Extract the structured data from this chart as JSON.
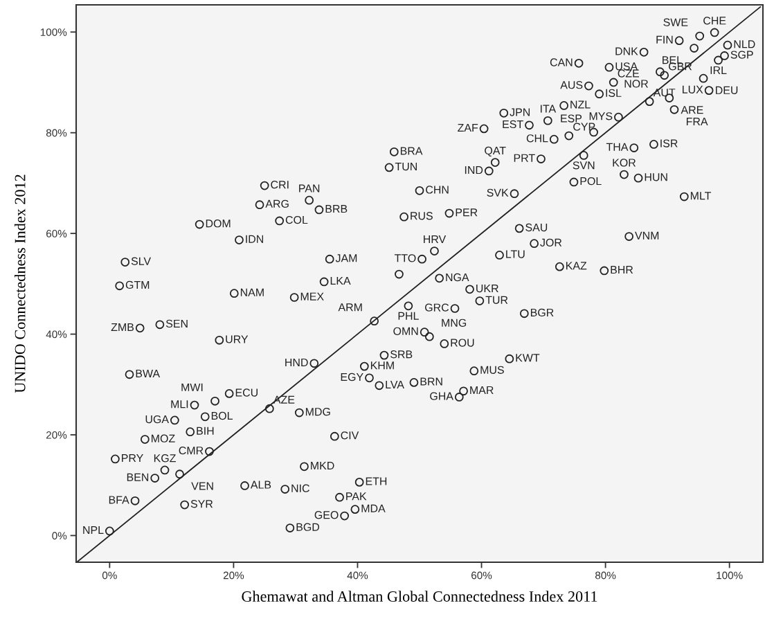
{
  "chart_data": {
    "type": "scatter",
    "xlabel": "Ghemawat and Altman Global Connectedness Index 2011",
    "ylabel": "UNIDO Connectedness Index 2012",
    "xlim": [
      -5.4,
      105.4
    ],
    "ylim": [
      -5.3,
      105.4
    ],
    "xticks": [
      {
        "value": 0,
        "label": "0%"
      },
      {
        "value": 20,
        "label": "20%"
      },
      {
        "value": 40,
        "label": "40%"
      },
      {
        "value": 60,
        "label": "60%"
      },
      {
        "value": 80,
        "label": "80%"
      },
      {
        "value": 100,
        "label": "100%"
      }
    ],
    "yticks": [
      {
        "value": 0,
        "label": "0%"
      },
      {
        "value": 20,
        "label": "20%"
      },
      {
        "value": 40,
        "label": "40%"
      },
      {
        "value": 60,
        "label": "60%"
      },
      {
        "value": 80,
        "label": "80%"
      },
      {
        "value": 100,
        "label": "100%"
      }
    ],
    "grid": false,
    "legend": false,
    "series": [
      {
        "type": "scatter",
        "marker": "circle",
        "color": "#222222",
        "value_labels": [
          "CHE",
          "SWE",
          "FIN",
          "BEL",
          "NLD",
          "SGP",
          "IRL",
          "DEU",
          "LUX",
          "DNK",
          "USA",
          "CAN",
          "NOR",
          "GBR",
          "CZE",
          "AUS",
          "NZL",
          "ISL",
          "AUT",
          "ARE",
          "FRA",
          "MYS",
          "THA",
          "ESP",
          "ISR",
          "EST",
          "JPN",
          "ZAF",
          "CYP",
          "CHL",
          "PRT",
          "SVN",
          "QAT",
          "IND",
          "KOR",
          "HUN",
          "POL",
          "SVK",
          "MLT",
          "CHN",
          "ITA",
          "BRA",
          "TUN",
          "CRI",
          "ARG",
          "PAN",
          "BRB",
          "DOM",
          "COL",
          "IDN",
          "RUS",
          "PER",
          "SAU",
          "JOR",
          "HRV",
          "SLV",
          "JAM",
          "TTO",
          null,
          "LTU",
          "KAZ",
          "BHR",
          "VNM",
          "NGA",
          "GTM",
          "NAM",
          "LKA",
          "MEX",
          "UKR",
          "TUR",
          "GRC",
          "BGR",
          "PHL",
          "ARM",
          "ZMB",
          "SEN",
          "URY",
          "OMN",
          "MNG",
          "ROU",
          "KWT",
          "MUS",
          "SRB",
          "HND",
          "KHM",
          "EGY",
          "LVA",
          "BRN",
          "BWA",
          "GHA",
          "MAR",
          "ECU",
          "MWI",
          "MLI",
          "UGA",
          "BOL",
          "BIH",
          "MOZ",
          "AZE",
          "MDG",
          "CIV",
          "CMR",
          "PRY",
          "KGZ",
          "BEN",
          "VEN",
          "MKD",
          "ETH",
          "ALB",
          "NIC",
          "PAK",
          "BFA",
          "SYR",
          "MDA",
          "GEO",
          "BGD",
          "NPL"
        ],
        "x": [
          97.6,
          95.2,
          91.9,
          94.3,
          99.7,
          99.2,
          98.2,
          95.8,
          96.7,
          86.2,
          80.6,
          75.7,
          88.8,
          89.5,
          81.3,
          77.3,
          73.3,
          79.0,
          87.1,
          90.3,
          91.1,
          82.1,
          84.6,
          78.1,
          87.8,
          67.7,
          63.6,
          60.4,
          74.1,
          71.7,
          69.6,
          76.5,
          62.2,
          61.2,
          83.0,
          85.3,
          74.9,
          65.3,
          92.7,
          50.0,
          70.7,
          45.9,
          45.1,
          25.0,
          24.2,
          32.2,
          33.8,
          14.5,
          27.4,
          20.9,
          47.5,
          54.8,
          66.1,
          68.5,
          52.4,
          2.5,
          35.5,
          50.4,
          46.7,
          62.9,
          72.6,
          79.8,
          83.8,
          53.2,
          1.6,
          20.1,
          34.6,
          29.8,
          58.1,
          59.7,
          55.7,
          66.9,
          48.2,
          42.7,
          4.9,
          8.1,
          17.7,
          50.8,
          51.6,
          54.0,
          64.5,
          58.8,
          44.3,
          33.0,
          41.1,
          41.9,
          43.5,
          49.1,
          3.2,
          56.4,
          57.1,
          19.3,
          17.0,
          13.7,
          10.5,
          15.4,
          13.0,
          5.7,
          25.8,
          30.6,
          36.3,
          16.1,
          0.9,
          8.9,
          7.3,
          11.3,
          31.4,
          40.3,
          21.8,
          28.3,
          37.1,
          4.1,
          12.1,
          39.6,
          37.9,
          29.1,
          0.0
        ],
        "values": [
          99.9,
          99.2,
          98.3,
          96.8,
          97.4,
          95.3,
          94.4,
          90.8,
          88.4,
          96.0,
          93.0,
          93.8,
          92.1,
          91.4,
          90.0,
          89.3,
          85.4,
          87.7,
          86.2,
          86.9,
          84.6,
          83.1,
          77.0,
          80.1,
          77.7,
          81.5,
          83.9,
          80.8,
          79.4,
          78.7,
          74.8,
          75.5,
          74.1,
          72.4,
          71.7,
          71.0,
          70.2,
          67.9,
          67.3,
          68.5,
          82.4,
          76.2,
          73.1,
          69.5,
          65.7,
          66.6,
          64.7,
          61.8,
          62.5,
          58.7,
          63.3,
          64.0,
          61.0,
          58.0,
          56.5,
          54.3,
          54.9,
          54.9,
          51.9,
          55.7,
          53.4,
          52.6,
          59.4,
          51.1,
          49.6,
          48.1,
          50.4,
          47.3,
          48.9,
          46.6,
          45.1,
          44.1,
          45.6,
          42.6,
          41.2,
          41.9,
          38.8,
          40.4,
          39.5,
          38.1,
          35.1,
          32.7,
          35.8,
          34.2,
          33.6,
          31.3,
          29.8,
          30.4,
          32.0,
          27.5,
          28.7,
          28.2,
          26.7,
          25.9,
          22.9,
          23.6,
          20.6,
          19.1,
          25.2,
          24.4,
          19.7,
          16.7,
          15.2,
          13.0,
          11.4,
          12.2,
          13.7,
          10.6,
          9.9,
          9.2,
          7.6,
          6.9,
          6.1,
          5.2,
          3.9,
          1.5,
          0.9
        ]
      },
      {
        "type": "line",
        "color": "#222222",
        "line_style": "solid",
        "x": [
          -5.3,
          105.0
        ],
        "values": [
          -5.3,
          105.0
        ]
      }
    ]
  }
}
